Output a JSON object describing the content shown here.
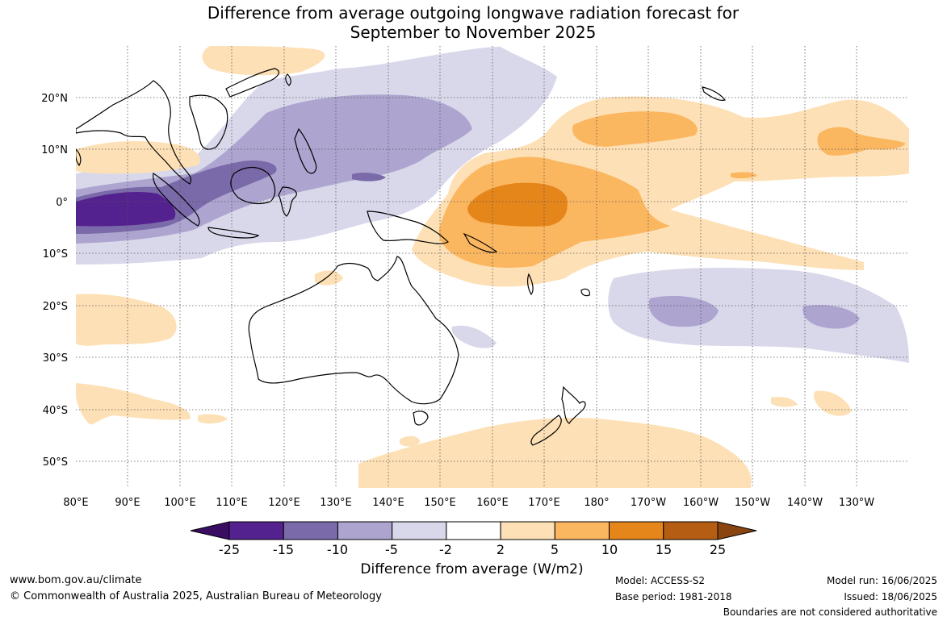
{
  "title_line1": "Difference from average outgoing longwave radiation forecast for",
  "title_line2": "September to November 2025",
  "lat_labels": [
    "20°N",
    "10°N",
    "0°",
    "10°S",
    "20°S",
    "30°S",
    "40°S",
    "50°S"
  ],
  "lon_labels": [
    "80°E",
    "90°E",
    "100°E",
    "110°E",
    "120°E",
    "130°E",
    "140°E",
    "150°E",
    "160°E",
    "170°E",
    "180°",
    "170°W",
    "160°W",
    "150°W",
    "140°W",
    "130°W"
  ],
  "colorbar": {
    "ticks": [
      "-25",
      "-15",
      "-10",
      "-5",
      "-2",
      "2",
      "5",
      "10",
      "15",
      "25"
    ],
    "colors": [
      "#54228f",
      "#7a6aa9",
      "#ada5d0",
      "#d9d8eb",
      "#ffffff",
      "#fde0b5",
      "#fbb660",
      "#e5861b",
      "#b55d12"
    ],
    "low_extend_color": "#3a0d63",
    "high_extend_color": "#8a4410",
    "label": "Difference from average (W/m2)"
  },
  "footer": {
    "url": "www.bom.gov.au/climate",
    "copyright": "© Commonwealth of Australia 2025, Australian Bureau of Meteorology",
    "model": "Model: ACCESS-S2",
    "base_period": "Base period: 1981-2018",
    "model_run": "Model run: 16/06/2025",
    "issued": "Issued: 18/06/2025",
    "disclaimer": "Boundaries are not considered authoritative"
  }
}
